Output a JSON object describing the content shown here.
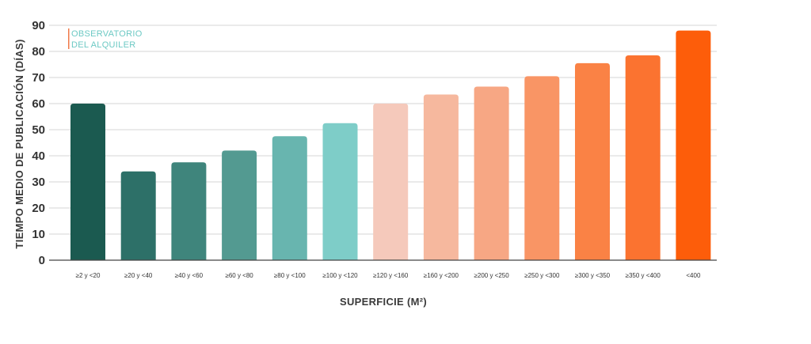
{
  "chart_data": {
    "type": "bar",
    "title": "",
    "ylabel": "TIEMPO MEDIO DE PUBLICACIÓN (DÍAS)",
    "xlabel": "SUPERFICIE (M²)",
    "categories": [
      "≥2  y <20",
      "≥20  y <40",
      "≥40  y <60",
      "≥60  y <80",
      "≥80  y <100",
      "≥100  y <120",
      "≥120  y <160",
      "≥160  y <200",
      "≥200  y <250",
      "≥250  y <300",
      "≥300  y <350",
      "≥350  y <400",
      "<400"
    ],
    "values": [
      60,
      34,
      37.5,
      42,
      47.5,
      52.5,
      60,
      63.5,
      66.5,
      70.5,
      75.5,
      78.5,
      88
    ],
    "colors": [
      "#1b5a50",
      "#2d7068",
      "#3f857c",
      "#539a91",
      "#68b5af",
      "#7ecdc8",
      "#f5c9bb",
      "#f6b89e",
      "#f7a784",
      "#f99565",
      "#fa8245",
      "#fb7330",
      "#fd5d0a"
    ],
    "ylim": [
      0,
      90
    ],
    "yticks": [
      0,
      10,
      20,
      30,
      40,
      50,
      60,
      70,
      80,
      90
    ],
    "grid": true,
    "legend": "none"
  },
  "logo": {
    "line1": "OBSERVATORIO",
    "line2": "DEL ALQUILER",
    "accent_color": "#f07a4a",
    "text_color": "#6cc9c4"
  }
}
